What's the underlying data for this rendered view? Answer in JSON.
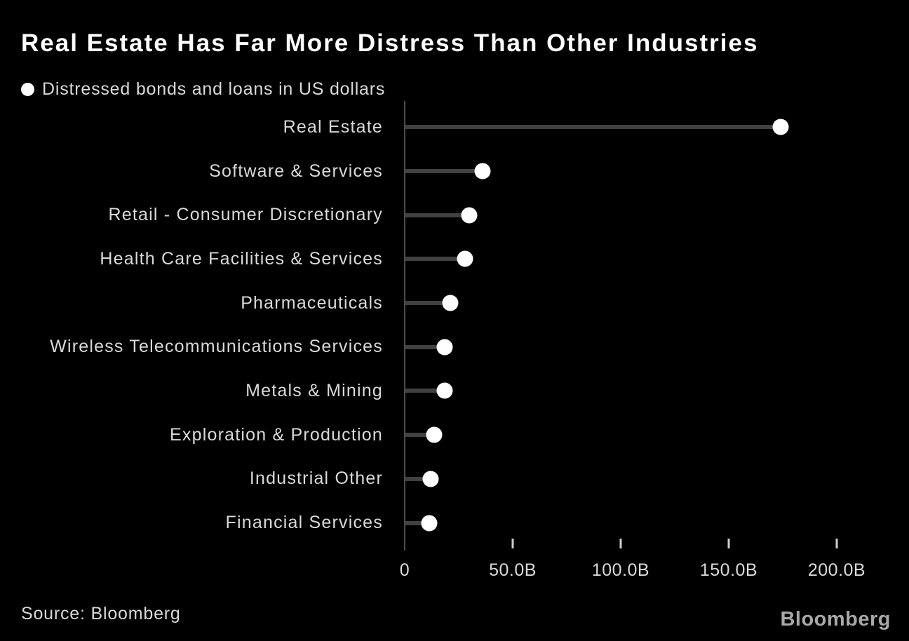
{
  "title": "Real Estate Has Far More Distress Than Other Industries",
  "legend": {
    "marker": "dot",
    "label": "Distressed bonds and loans in US dollars"
  },
  "source": "Source: Bloomberg",
  "brand": "Bloomberg",
  "colors": {
    "background": "#000000",
    "title": "#ffffff",
    "text": "#d9d9d9",
    "stem": "#414141",
    "axis": "#4d4d4d",
    "tick": "#cfcfcf",
    "dot": "#ffffff",
    "brand": "#a8a8a8"
  },
  "chart_data": {
    "type": "scatter",
    "variant": "horizontal-lollipop",
    "title": "Real Estate Has Far More Distress Than Other Industries",
    "series_name": "Distressed bonds and loans in US dollars",
    "unit": "USD billions",
    "categories": [
      "Real Estate",
      "Software & Services",
      "Retail - Consumer Discretionary",
      "Health Care Facilities & Services",
      "Pharmaceuticals",
      "Wireless Telecommunications Services",
      "Metals & Mining",
      "Exploration & Production",
      "Industrial Other",
      "Financial Services"
    ],
    "values": [
      174,
      36,
      30,
      28,
      21,
      18.5,
      18.5,
      13.5,
      12,
      11.5
    ],
    "xlim": [
      0,
      200
    ],
    "xticks": [
      {
        "value": 0,
        "label": "0"
      },
      {
        "value": 50,
        "label": "50.0B"
      },
      {
        "value": 100,
        "label": "100.0B"
      },
      {
        "value": 150,
        "label": "150.0B"
      },
      {
        "value": 200,
        "label": "200.0B"
      }
    ],
    "grid": false,
    "legend_position": "top-left"
  }
}
